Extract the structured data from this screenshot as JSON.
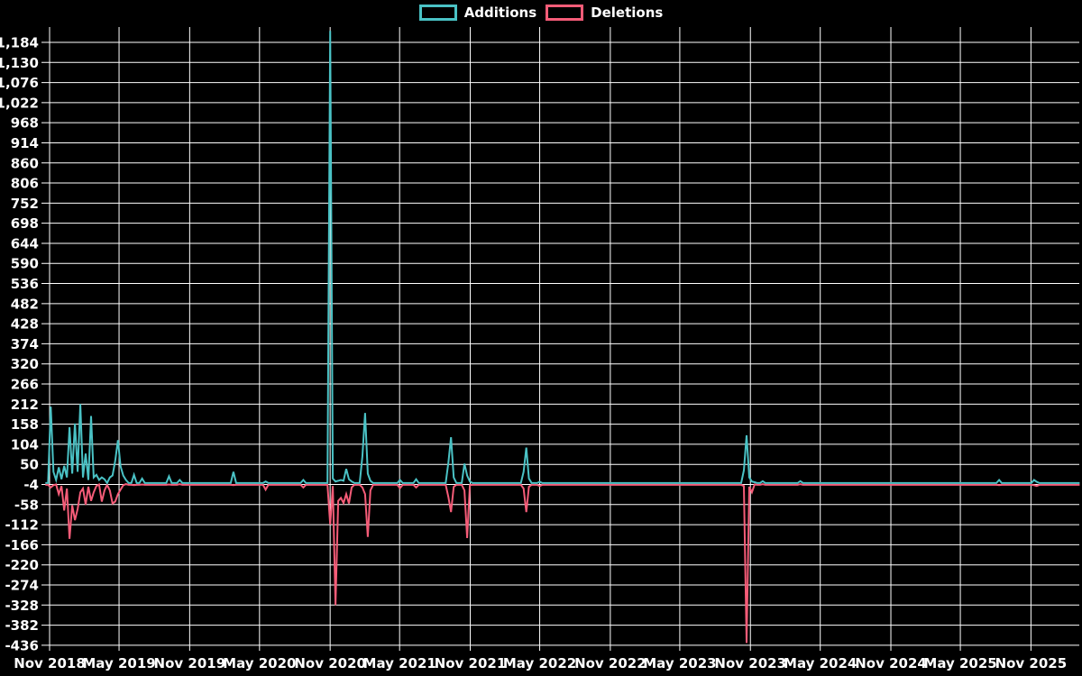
{
  "legend": {
    "additions_label": "Additions",
    "deletions_label": "Deletions"
  },
  "colors": {
    "background": "#000000",
    "grid": "#ffffff",
    "text": "#ffffff",
    "additions": "#4ac2c5",
    "deletions": "#f55c78"
  },
  "chart_data": {
    "type": "line",
    "title": "",
    "xlabel": "",
    "ylabel": "",
    "grid": true,
    "legend_position": "top-center",
    "series": [
      {
        "name": "Additions",
        "field": "a",
        "color_key": "additions"
      },
      {
        "name": "Deletions",
        "field": "d",
        "color_key": "deletions"
      }
    ],
    "y_ticks": [
      {
        "value": 1184,
        "label": "1,184"
      },
      {
        "value": 1130,
        "label": "1,130"
      },
      {
        "value": 1076,
        "label": "1,076"
      },
      {
        "value": 1022,
        "label": "1,022"
      },
      {
        "value": 968,
        "label": "968"
      },
      {
        "value": 914,
        "label": "914"
      },
      {
        "value": 860,
        "label": "860"
      },
      {
        "value": 806,
        "label": "806"
      },
      {
        "value": 752,
        "label": "752"
      },
      {
        "value": 698,
        "label": "698"
      },
      {
        "value": 644,
        "label": "644"
      },
      {
        "value": 590,
        "label": "590"
      },
      {
        "value": 536,
        "label": "536"
      },
      {
        "value": 482,
        "label": "482"
      },
      {
        "value": 428,
        "label": "428"
      },
      {
        "value": 374,
        "label": "374"
      },
      {
        "value": 320,
        "label": "320"
      },
      {
        "value": 266,
        "label": "266"
      },
      {
        "value": 212,
        "label": "212"
      },
      {
        "value": 158,
        "label": "158"
      },
      {
        "value": 104,
        "label": "104"
      },
      {
        "value": 50,
        "label": "50"
      },
      {
        "value": -4,
        "label": "-4"
      },
      {
        "value": -58,
        "label": "-58"
      },
      {
        "value": -112,
        "label": "-112"
      },
      {
        "value": -166,
        "label": "-166"
      },
      {
        "value": -220,
        "label": "-220"
      },
      {
        "value": -274,
        "label": "-274"
      },
      {
        "value": -328,
        "label": "-328"
      },
      {
        "value": -382,
        "label": "-382"
      },
      {
        "value": -436,
        "label": "-436"
      }
    ],
    "x_ticks": [
      {
        "label": "Nov 2018",
        "day": 0
      },
      {
        "label": "May 2019",
        "day": 181
      },
      {
        "label": "Nov 2019",
        "day": 365
      },
      {
        "label": "May 2020",
        "day": 547
      },
      {
        "label": "Nov 2020",
        "day": 731
      },
      {
        "label": "May 2021",
        "day": 912
      },
      {
        "label": "Nov 2021",
        "day": 1096
      },
      {
        "label": "May 2022",
        "day": 1277
      },
      {
        "label": "Nov 2022",
        "day": 1461
      },
      {
        "label": "May 2023",
        "day": 1642
      },
      {
        "label": "Nov 2023",
        "day": 1826
      },
      {
        "label": "May 2024",
        "day": 2008
      },
      {
        "label": "Nov 2024",
        "day": 2192
      },
      {
        "label": "May 2025",
        "day": 2373
      },
      {
        "label": "Nov 2025",
        "day": 2557
      }
    ],
    "x_start_date": "2018-11-04",
    "week_index_range": [
      -2,
      383
    ],
    "baseline_value": 0,
    "ylim": [
      -463,
      1225
    ],
    "active_weeks": [
      {
        "week": 0,
        "date": "2018-11-04",
        "a": 205,
        "d": -12
      },
      {
        "week": 1,
        "date": "2018-11-11",
        "a": 30,
        "d": -6
      },
      {
        "week": 2,
        "date": "2018-11-18",
        "a": 8,
        "d": -4
      },
      {
        "week": 3,
        "date": "2018-11-25",
        "a": 42,
        "d": -30
      },
      {
        "week": 4,
        "date": "2018-12-02",
        "a": 10,
        "d": -8
      },
      {
        "week": 5,
        "date": "2018-12-09",
        "a": 46,
        "d": -74
      },
      {
        "week": 6,
        "date": "2018-12-16",
        "a": 15,
        "d": -15
      },
      {
        "week": 7,
        "date": "2018-12-23",
        "a": 150,
        "d": -150
      },
      {
        "week": 8,
        "date": "2018-12-30",
        "a": 25,
        "d": -60
      },
      {
        "week": 9,
        "date": "2019-01-06",
        "a": 160,
        "d": -100
      },
      {
        "week": 10,
        "date": "2019-01-13",
        "a": 30,
        "d": -70
      },
      {
        "week": 11,
        "date": "2019-01-20",
        "a": 212,
        "d": -25
      },
      {
        "week": 12,
        "date": "2019-01-27",
        "a": 15,
        "d": -15
      },
      {
        "week": 13,
        "date": "2019-02-03",
        "a": 79,
        "d": -58
      },
      {
        "week": 14,
        "date": "2019-02-10",
        "a": 8,
        "d": -10
      },
      {
        "week": 15,
        "date": "2019-02-17",
        "a": 180,
        "d": -48
      },
      {
        "week": 16,
        "date": "2019-02-24",
        "a": 15,
        "d": -25
      },
      {
        "week": 17,
        "date": "2019-03-03",
        "a": 22,
        "d": -8
      },
      {
        "week": 18,
        "date": "2019-03-10",
        "a": 8,
        "d": -4
      },
      {
        "week": 19,
        "date": "2019-03-17",
        "a": 15,
        "d": -50
      },
      {
        "week": 20,
        "date": "2019-03-24",
        "a": 10,
        "d": -20
      },
      {
        "week": 22,
        "date": "2019-04-07",
        "a": 15,
        "d": -20
      },
      {
        "week": 23,
        "date": "2019-04-14",
        "a": 20,
        "d": -55
      },
      {
        "week": 24,
        "date": "2019-04-21",
        "a": 60,
        "d": -50
      },
      {
        "week": 25,
        "date": "2019-04-28",
        "a": 115,
        "d": -30
      },
      {
        "week": 26,
        "date": "2019-05-05",
        "a": 45,
        "d": -18
      },
      {
        "week": 27,
        "date": "2019-05-12",
        "a": 20,
        "d": -6
      },
      {
        "week": 28,
        "date": "2019-05-19",
        "a": 8,
        "d": -3
      },
      {
        "week": 31,
        "date": "2019-06-09",
        "a": 22,
        "d": -6
      },
      {
        "week": 34,
        "date": "2019-06-30",
        "a": 12,
        "d": -4
      },
      {
        "week": 44,
        "date": "2019-09-08",
        "a": 18,
        "d": -4
      },
      {
        "week": 48,
        "date": "2019-10-06",
        "a": 8,
        "d": -3
      },
      {
        "week": 68,
        "date": "2020-02-23",
        "a": 30,
        "d": -6
      },
      {
        "week": 80,
        "date": "2020-05-17",
        "a": 4,
        "d": -18
      },
      {
        "week": 94,
        "date": "2020-08-23",
        "a": 8,
        "d": -12
      },
      {
        "week": 104,
        "date": "2020-11-01",
        "a": 1215,
        "d": -112
      },
      {
        "week": 105,
        "date": "2020-11-08",
        "a": 12,
        "d": -8
      },
      {
        "week": 106,
        "date": "2020-11-15",
        "a": 4,
        "d": -328
      },
      {
        "week": 107,
        "date": "2020-11-22",
        "a": 6,
        "d": -48
      },
      {
        "week": 108,
        "date": "2020-11-29",
        "a": 8,
        "d": -40
      },
      {
        "week": 109,
        "date": "2020-12-06",
        "a": 6,
        "d": -54
      },
      {
        "week": 110,
        "date": "2020-12-13",
        "a": 38,
        "d": -30
      },
      {
        "week": 111,
        "date": "2020-12-20",
        "a": 10,
        "d": -55
      },
      {
        "week": 112,
        "date": "2020-12-27",
        "a": 4,
        "d": -12
      },
      {
        "week": 116,
        "date": "2021-01-24",
        "a": 71,
        "d": -12
      },
      {
        "week": 117,
        "date": "2021-01-31",
        "a": 188,
        "d": -30
      },
      {
        "week": 118,
        "date": "2021-02-07",
        "a": 25,
        "d": -145
      },
      {
        "week": 119,
        "date": "2021-02-14",
        "a": 6,
        "d": -20
      },
      {
        "week": 130,
        "date": "2021-05-02",
        "a": 8,
        "d": -14
      },
      {
        "week": 136,
        "date": "2021-06-13",
        "a": 10,
        "d": -12
      },
      {
        "week": 148,
        "date": "2021-09-05",
        "a": 55,
        "d": -38
      },
      {
        "week": 149,
        "date": "2021-09-12",
        "a": 123,
        "d": -78
      },
      {
        "week": 150,
        "date": "2021-09-19",
        "a": 15,
        "d": -10
      },
      {
        "week": 154,
        "date": "2021-10-17",
        "a": 52,
        "d": -20
      },
      {
        "week": 155,
        "date": "2021-10-24",
        "a": 20,
        "d": -148
      },
      {
        "week": 156,
        "date": "2021-10-31",
        "a": 4,
        "d": -6
      },
      {
        "week": 176,
        "date": "2022-03-20",
        "a": 30,
        "d": -15
      },
      {
        "week": 177,
        "date": "2022-03-27",
        "a": 95,
        "d": -78
      },
      {
        "week": 178,
        "date": "2022-04-03",
        "a": 12,
        "d": -10
      },
      {
        "week": 182,
        "date": "2022-05-01",
        "a": 3,
        "d": -8
      },
      {
        "week": 258,
        "date": "2023-10-15",
        "a": 34,
        "d": -8
      },
      {
        "week": 259,
        "date": "2023-10-22",
        "a": 128,
        "d": -430
      },
      {
        "week": 260,
        "date": "2023-10-29",
        "a": 15,
        "d": -10
      },
      {
        "week": 261,
        "date": "2023-11-05",
        "a": 4,
        "d": -25
      },
      {
        "week": 262,
        "date": "2023-11-12",
        "a": 2,
        "d": -4
      },
      {
        "week": 265,
        "date": "2023-12-03",
        "a": 5,
        "d": -3
      },
      {
        "week": 279,
        "date": "2024-03-10",
        "a": 5,
        "d": -3
      },
      {
        "week": 353,
        "date": "2025-08-10",
        "a": 8,
        "d": -6
      },
      {
        "week": 366,
        "date": "2025-11-09",
        "a": 8,
        "d": -6
      },
      {
        "week": 367,
        "date": "2025-11-16",
        "a": 3,
        "d": -8
      }
    ]
  }
}
